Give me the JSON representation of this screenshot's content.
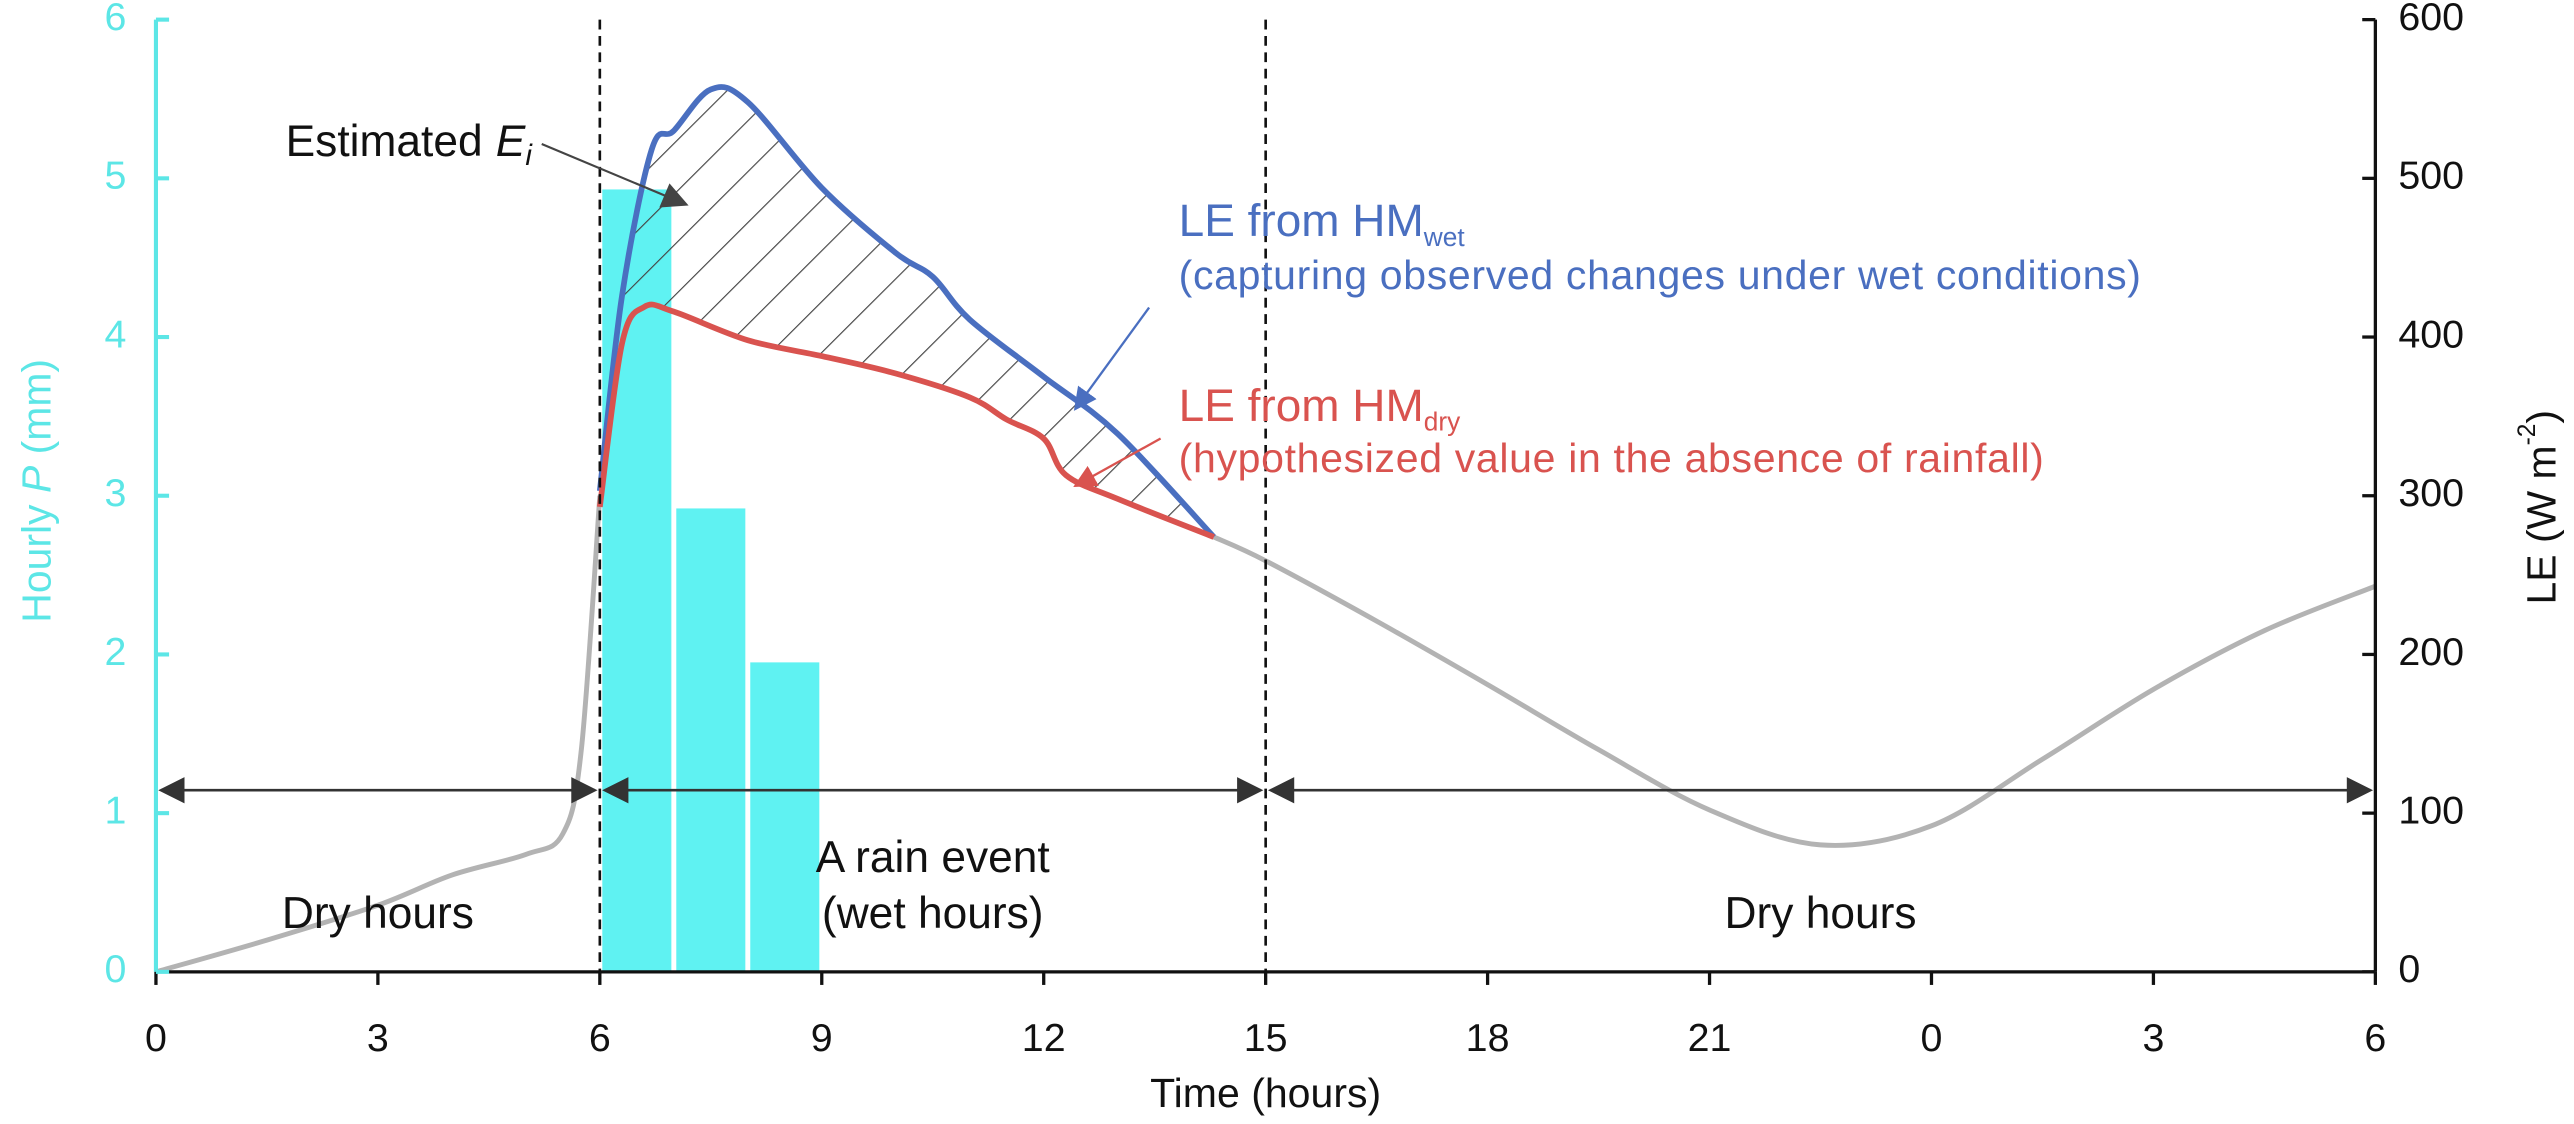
{
  "chart_data": {
    "type": "combo",
    "x_label": "Time (hours)",
    "y_label": {
      "prefix": "Hourly",
      "symbol": "P",
      "suffix": "(mm)"
    },
    "y2_label": {
      "prefix": "LE (W m",
      "superscript": "-2",
      "suffix": ")"
    },
    "xlim": [
      0,
      30
    ],
    "xticks": [
      0,
      3,
      6,
      9,
      12,
      15,
      18,
      21,
      {
        "value": 24,
        "label": "0"
      },
      {
        "value": 27,
        "label": "3"
      },
      {
        "value": 30,
        "label": "6"
      }
    ],
    "ylim": [
      0,
      6
    ],
    "yticks": [
      0,
      1,
      2,
      3,
      4,
      5,
      6
    ],
    "y2lim": [
      0,
      600
    ],
    "y2ticks": [
      0,
      100,
      200,
      300,
      400,
      500,
      600
    ],
    "y_axis_color": "#5ce6e6",
    "precipitation": {
      "type": "bar",
      "bins": [
        6,
        7,
        8,
        9
      ],
      "values": [
        4.93,
        2.92,
        1.95
      ],
      "color": "#5ff2f2"
    },
    "series": [
      {
        "type": "line",
        "axis": "y2",
        "color": "#b3b3b3",
        "x": [
          0,
          1.5,
          3,
          4,
          5,
          5.5,
          5.75,
          6,
          10,
          14.3,
          15,
          16.5,
          18,
          19.5,
          21,
          22.5,
          24,
          25.5,
          27,
          28.5,
          30
        ],
        "values": [
          0,
          20,
          42,
          61,
          74,
          87,
          140,
          300,
          null,
          274,
          259,
          221,
          181,
          140,
          102,
          80,
          92,
          134,
          178,
          215,
          243
        ]
      },
      {
        "type": "line",
        "axis": "y2",
        "color": "#4a6fc0",
        "name": "LE from HM",
        "name_subscript": "wet",
        "description": "(capturing observed changes under wet conditions)",
        "x": [
          6,
          6.3,
          6.7,
          7,
          7.5,
          8,
          9,
          10,
          10.5,
          11,
          12,
          13,
          14.3
        ],
        "values": [
          303,
          426,
          518,
          530,
          556,
          548,
          494,
          453,
          438,
          411,
          375,
          339,
          274
        ]
      },
      {
        "type": "line",
        "axis": "y2",
        "color": "#d9534f",
        "name": "LE from HM",
        "name_subscript": "dry",
        "description": "(hypothesized value in the absence of rainfall)",
        "x": [
          6,
          6.3,
          6.6,
          7,
          8,
          9,
          10,
          11,
          11.5,
          12,
          12.3,
          13,
          14.3
        ],
        "values": [
          293,
          396,
          419,
          416,
          398,
          388,
          377,
          362,
          348,
          336,
          313,
          298,
          274
        ]
      }
    ],
    "annotation": {
      "text": "Estimated",
      "symbol": "E",
      "subscript": "i"
    },
    "periods": [
      {
        "label": "Dry hours",
        "start": 0,
        "end": 6
      },
      {
        "label": "A rain event",
        "label_line2": "(wet hours)",
        "start": 6,
        "end": 15
      },
      {
        "label": "Dry hours",
        "start": 15,
        "end": 30
      }
    ]
  }
}
